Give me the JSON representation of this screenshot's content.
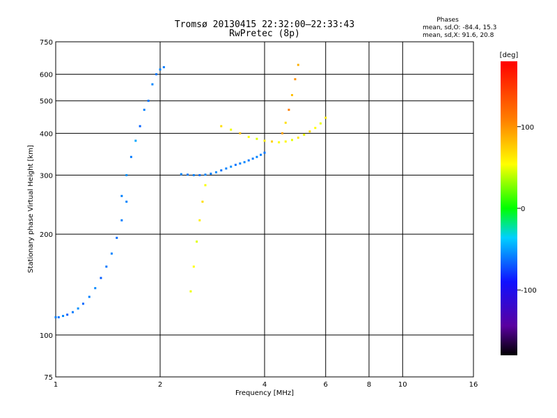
{
  "chart_data": {
    "type": "scatter",
    "title": "Tromsø 20130415 22:32:00–22:33:43",
    "subtitle": "RwPretec (8p)",
    "xlabel": "Frequency [MHz]",
    "ylabel": "Stationary phase Virtual Height [km]",
    "x_scale": "log",
    "y_scale": "log",
    "xlim": [
      1,
      16
    ],
    "ylim": [
      75,
      750
    ],
    "x_ticks": [
      1,
      2,
      4,
      6,
      8,
      10,
      16
    ],
    "y_ticks": [
      75,
      100,
      200,
      300,
      400,
      500,
      600,
      750
    ],
    "grid": true,
    "stats": {
      "heading": "Phases",
      "line_o": "mean, sd,O: -84.4, 15.3",
      "line_x": "mean, sd,X:  91.6, 20.8"
    },
    "colorbar": {
      "label": "[deg]",
      "range": [
        -180,
        180
      ],
      "ticks": [
        100,
        0,
        -100
      ],
      "tick_labels": [
        "100",
        "0",
        "-100"
      ]
    },
    "series": [
      {
        "x": [
          1.0,
          1.02,
          1.05,
          1.08,
          1.12,
          1.16,
          1.2,
          1.25,
          1.3,
          1.35,
          1.4,
          1.45,
          1.5,
          1.55,
          1.6
        ],
        "y": [
          113,
          113,
          114,
          115,
          117,
          120,
          124,
          130,
          138,
          148,
          160,
          175,
          195,
          220,
          250
        ],
        "phase": [
          -100,
          -105,
          -98,
          -110,
          -102,
          -95,
          -108,
          -100,
          -97,
          -112,
          -103,
          -99,
          -106,
          -101,
          -98
        ]
      },
      {
        "x": [
          1.55,
          1.6,
          1.65,
          1.7,
          1.75,
          1.8,
          1.85,
          1.9,
          1.95,
          2.0,
          2.05
        ],
        "y": [
          260,
          300,
          340,
          380,
          420,
          470,
          500,
          560,
          600,
          620,
          630
        ],
        "phase": [
          -100,
          -95,
          -102,
          -88,
          -110,
          -100,
          -105,
          -98,
          -103,
          -99,
          -101
        ]
      },
      {
        "x": [
          2.3,
          2.4,
          2.5,
          2.6,
          2.7,
          2.8,
          2.9,
          3.0,
          3.1,
          3.2,
          3.3,
          3.4,
          3.5,
          3.6,
          3.7,
          3.8,
          3.9,
          4.0
        ],
        "y": [
          302,
          301,
          300,
          300,
          301,
          303,
          306,
          310,
          314,
          318,
          322,
          325,
          328,
          332,
          336,
          340,
          345,
          350
        ],
        "phase": [
          -98,
          -102,
          -100,
          -105,
          -99,
          -101,
          -97,
          -103,
          -100,
          -96,
          -104,
          -100,
          -98,
          -102,
          -101,
          -99,
          -100,
          -103
        ]
      },
      {
        "x": [
          3.0,
          3.2,
          3.4,
          3.6,
          3.8,
          4.0,
          4.2,
          4.4,
          4.6,
          4.8,
          5.0,
          5.2,
          5.4,
          5.6,
          5.8,
          6.0
        ],
        "y": [
          420,
          410,
          400,
          390,
          385,
          380,
          378,
          376,
          378,
          382,
          388,
          396,
          405,
          415,
          428,
          445
        ],
        "phase": [
          110,
          95,
          120,
          100,
          90,
          105,
          115,
          98,
          102,
          92,
          108,
          96,
          112,
          100,
          94,
          106
        ]
      },
      {
        "x": [
          4.5,
          4.6,
          4.7,
          4.8,
          4.9,
          5.0
        ],
        "y": [
          400,
          430,
          470,
          520,
          580,
          640
        ],
        "phase": [
          130,
          110,
          140,
          120,
          135,
          125
        ]
      },
      {
        "x": [
          2.45,
          2.5,
          2.55,
          2.6,
          2.65,
          2.7
        ],
        "y": [
          135,
          160,
          190,
          220,
          250,
          280
        ],
        "phase": [
          95,
          100,
          90,
          105,
          110,
          98
        ]
      }
    ]
  }
}
